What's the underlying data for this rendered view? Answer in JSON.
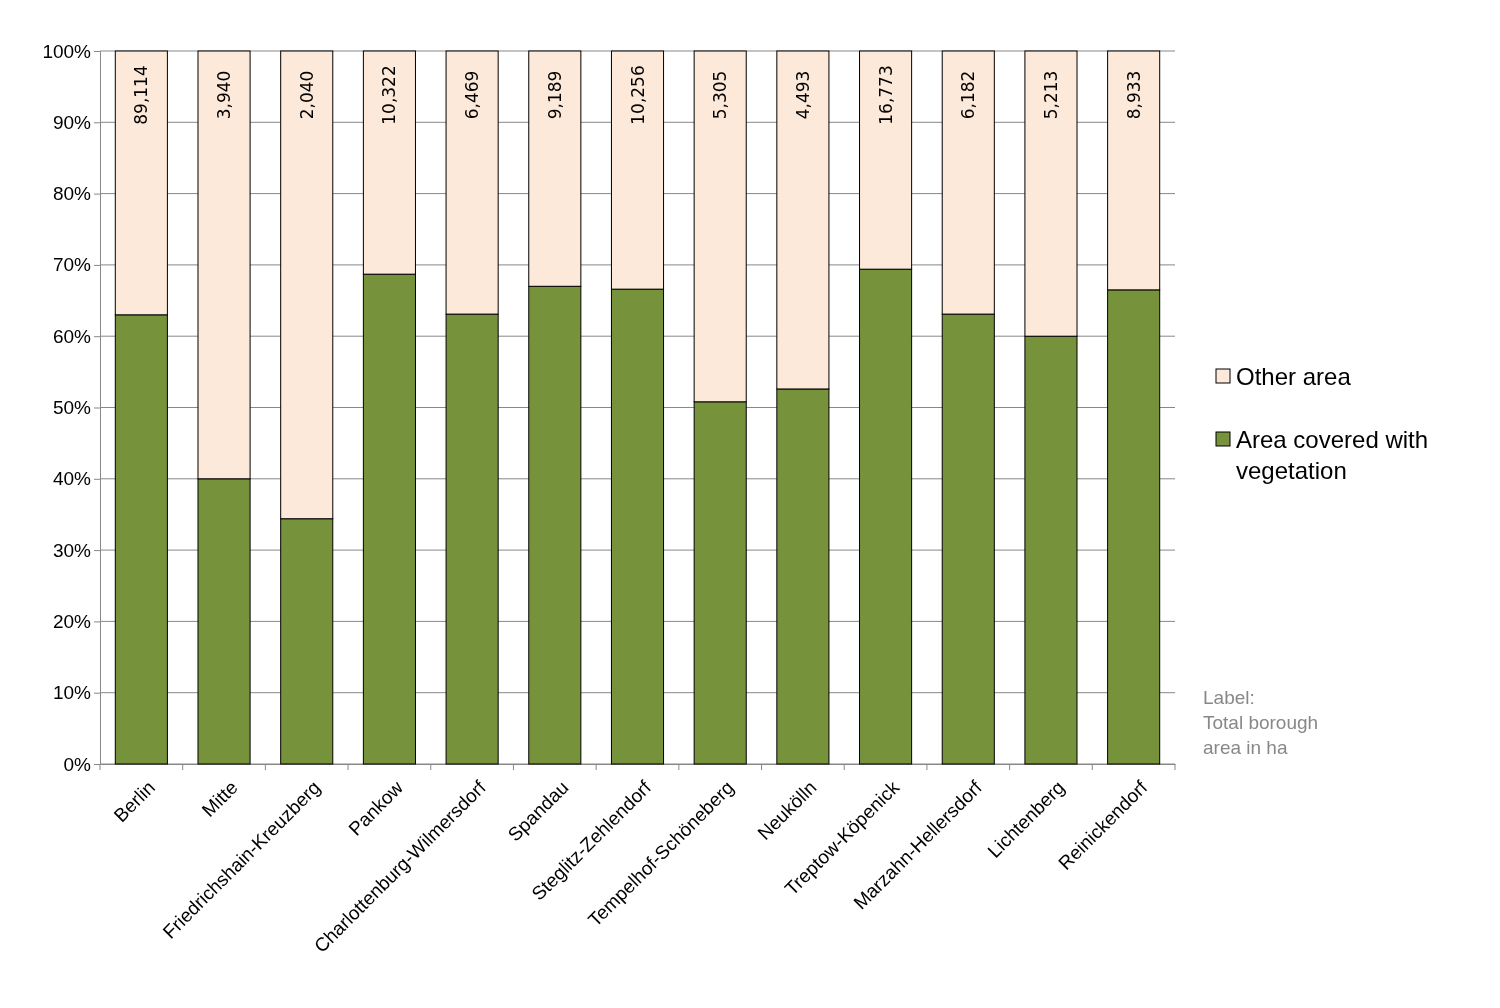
{
  "chart_data": {
    "type": "bar",
    "stacked": true,
    "categories": [
      "Berlin",
      "Mitte",
      "Friedrichshain-Kreuzberg",
      "Pankow",
      "Charlottenburg-Wilmersdorf",
      "Spandau",
      "Steglitz-Zehlendorf",
      "Tempelhof-Schöneberg",
      "Neukölln",
      "Treptow-Köpenick",
      "Marzahn-Hellersdorf",
      "Lichtenberg",
      "Reinickendorf"
    ],
    "series": [
      {
        "name": "Area covered with vegetation",
        "color": "#76933c",
        "values": [
          63.0,
          40.0,
          34.4,
          68.7,
          63.1,
          67.0,
          66.6,
          50.8,
          52.6,
          69.4,
          63.1,
          60.0,
          66.5
        ]
      },
      {
        "name": "Other area",
        "color": "#fde9d9",
        "values": [
          37.0,
          60.0,
          65.6,
          31.3,
          36.9,
          33.0,
          33.4,
          49.2,
          47.4,
          30.6,
          36.9,
          40.0,
          33.5
        ]
      }
    ],
    "ylim": [
      0,
      100
    ],
    "yticks": [
      {
        "value": 0,
        "label": "0%"
      },
      {
        "value": 10,
        "label": "10%"
      },
      {
        "value": 20,
        "label": "20%"
      },
      {
        "value": 30,
        "label": "30%"
      },
      {
        "value": 40,
        "label": "40%"
      },
      {
        "value": 50,
        "label": "50%"
      },
      {
        "value": 60,
        "label": "60%"
      },
      {
        "value": 70,
        "label": "70%"
      },
      {
        "value": 80,
        "label": "80%"
      },
      {
        "value": 90,
        "label": "90%"
      },
      {
        "value": 100,
        "label": "100%"
      }
    ],
    "grid": "y",
    "legend": "right",
    "annotations": [
      "89,114",
      "3,940",
      "2,040",
      "10,322",
      "6,469",
      "9,189",
      "10,256",
      "5,305",
      "4,493",
      "16,773",
      "6,182",
      "5,213",
      "8,933",
      "Label:\nTotal borough\narea in ha"
    ]
  }
}
